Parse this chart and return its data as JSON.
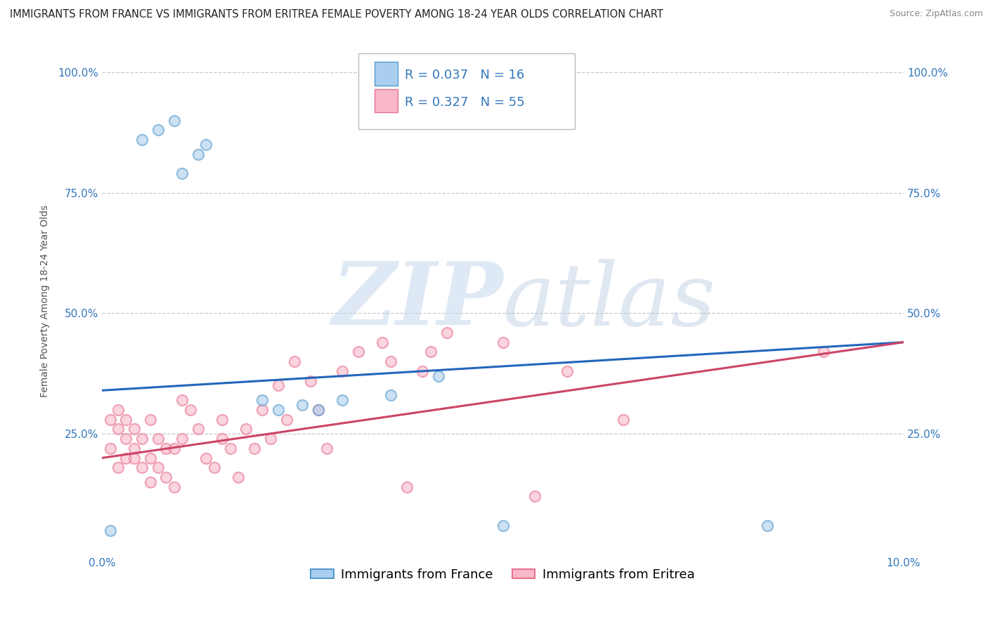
{
  "title": "IMMIGRANTS FROM FRANCE VS IMMIGRANTS FROM ERITREA FEMALE POVERTY AMONG 18-24 YEAR OLDS CORRELATION CHART",
  "source": "Source: ZipAtlas.com",
  "ylabel": "Female Poverty Among 18-24 Year Olds",
  "xlim": [
    0.0,
    0.1
  ],
  "ylim": [
    0.0,
    1.05
  ],
  "xticks": [
    0.0,
    0.02,
    0.04,
    0.06,
    0.08,
    0.1
  ],
  "xticklabels": [
    "0.0%",
    "",
    "",
    "",
    "",
    "10.0%"
  ],
  "yticks": [
    0.0,
    0.25,
    0.5,
    0.75,
    1.0
  ],
  "yticklabels": [
    "",
    "25.0%",
    "50.0%",
    "75.0%",
    "100.0%"
  ],
  "france_color": "#aacfee",
  "eritrea_color": "#f8b8c8",
  "france_edge_color": "#5599cc",
  "eritrea_edge_color": "#e87090",
  "france_line_color": "#2266bb",
  "eritrea_line_color": "#cc4466",
  "france_R": 0.037,
  "france_N": 16,
  "eritrea_R": 0.327,
  "eritrea_N": 55,
  "watermark_zip": "ZIP",
  "watermark_atlas": "atlas",
  "france_scatter_x": [
    0.005,
    0.007,
    0.009,
    0.01,
    0.012,
    0.013,
    0.02,
    0.022,
    0.025,
    0.027,
    0.03,
    0.036,
    0.042,
    0.05,
    0.083,
    0.001
  ],
  "france_scatter_y": [
    0.86,
    0.88,
    0.9,
    0.79,
    0.83,
    0.85,
    0.32,
    0.3,
    0.31,
    0.3,
    0.32,
    0.33,
    0.37,
    0.06,
    0.06,
    0.05
  ],
  "eritrea_scatter_x": [
    0.001,
    0.001,
    0.002,
    0.002,
    0.002,
    0.003,
    0.003,
    0.003,
    0.004,
    0.004,
    0.004,
    0.005,
    0.005,
    0.006,
    0.006,
    0.006,
    0.007,
    0.007,
    0.008,
    0.008,
    0.009,
    0.009,
    0.01,
    0.01,
    0.011,
    0.012,
    0.013,
    0.014,
    0.015,
    0.015,
    0.016,
    0.017,
    0.018,
    0.019,
    0.02,
    0.021,
    0.022,
    0.023,
    0.024,
    0.026,
    0.027,
    0.028,
    0.03,
    0.032,
    0.035,
    0.036,
    0.038,
    0.04,
    0.041,
    0.043,
    0.05,
    0.054,
    0.058,
    0.065,
    0.09
  ],
  "eritrea_scatter_y": [
    0.22,
    0.28,
    0.18,
    0.26,
    0.3,
    0.2,
    0.24,
    0.28,
    0.22,
    0.26,
    0.2,
    0.18,
    0.24,
    0.15,
    0.2,
    0.28,
    0.18,
    0.24,
    0.16,
    0.22,
    0.14,
    0.22,
    0.24,
    0.32,
    0.3,
    0.26,
    0.2,
    0.18,
    0.24,
    0.28,
    0.22,
    0.16,
    0.26,
    0.22,
    0.3,
    0.24,
    0.35,
    0.28,
    0.4,
    0.36,
    0.3,
    0.22,
    0.38,
    0.42,
    0.44,
    0.4,
    0.14,
    0.38,
    0.42,
    0.46,
    0.44,
    0.12,
    0.38,
    0.28,
    0.42
  ],
  "background_color": "#ffffff",
  "grid_color": "#c8c8c8",
  "title_fontsize": 10.5,
  "axis_label_fontsize": 10,
  "tick_fontsize": 11,
  "legend_fontsize": 13,
  "scatter_size": 120,
  "scatter_alpha": 0.6,
  "france_trendline_x": [
    0.0,
    0.1
  ],
  "france_trendline_y": [
    0.34,
    0.44
  ],
  "eritrea_trendline_x": [
    0.0,
    0.1
  ],
  "eritrea_trendline_y": [
    0.2,
    0.44
  ],
  "dot_edgewidth": 1.5
}
